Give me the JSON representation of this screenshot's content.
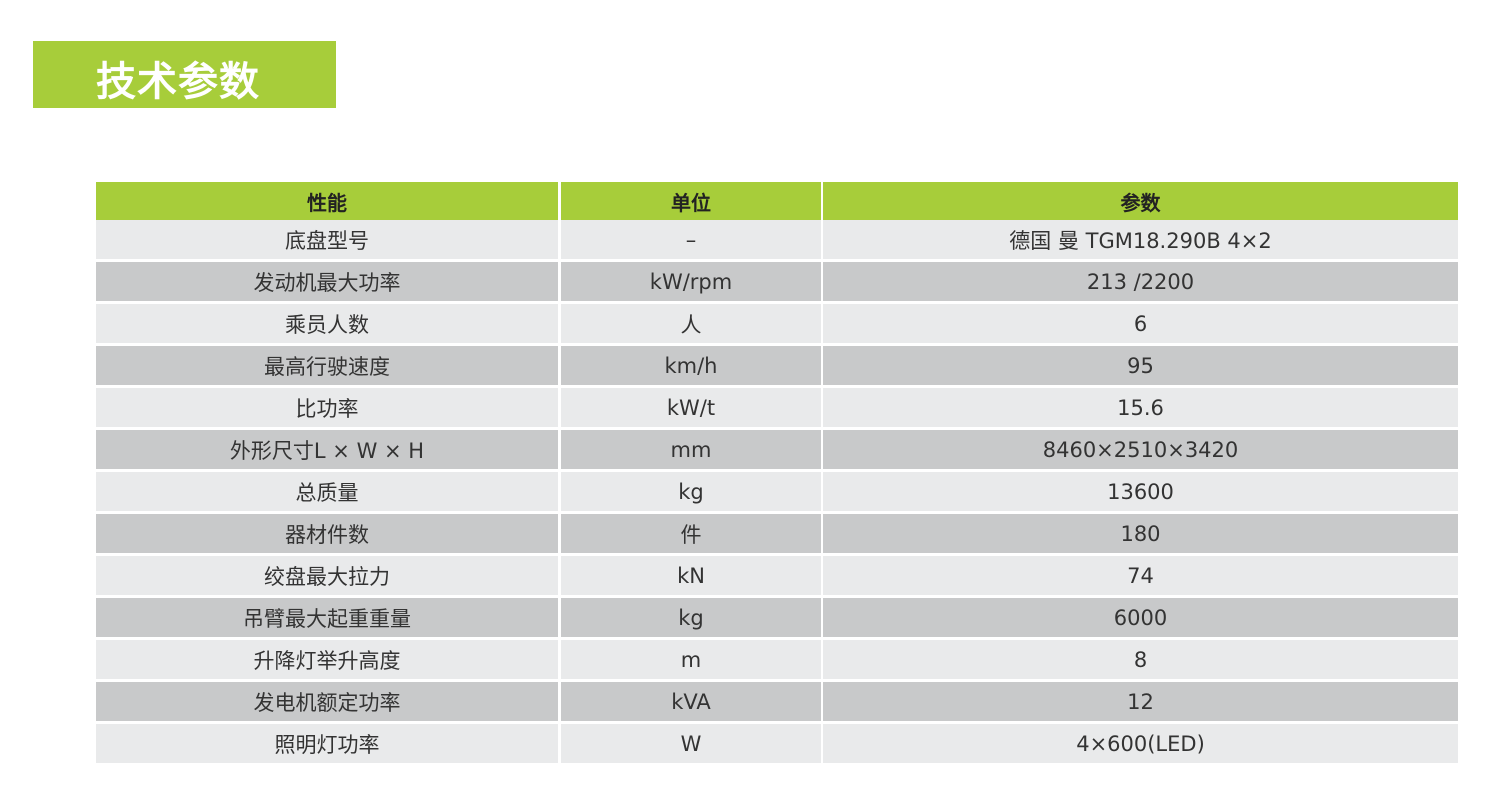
{
  "title": "技术参数",
  "colors": {
    "accent": "#a7cd3a",
    "row_light": "#e9eaeb",
    "row_dark": "#c8c9ca"
  },
  "table": {
    "headers": [
      "性能",
      "单位",
      "参数"
    ],
    "rows": [
      [
        "底盘型号",
        "–",
        "德国 曼 TGM18.290B 4×2"
      ],
      [
        "发动机最大功率",
        "kW/rpm",
        "213 /2200"
      ],
      [
        "乘员人数",
        "人",
        "6"
      ],
      [
        "最高行驶速度",
        "km/h",
        "95"
      ],
      [
        "比功率",
        "kW/t",
        "15.6"
      ],
      [
        "外形尺寸L × W × H",
        "mm",
        "8460×2510×3420"
      ],
      [
        "总质量",
        "kg",
        "13600"
      ],
      [
        "器材件数",
        "件",
        "180"
      ],
      [
        "绞盘最大拉力",
        "kN",
        "74"
      ],
      [
        "吊臂最大起重重量",
        "kg",
        "6000"
      ],
      [
        "升降灯举升高度",
        "m",
        "8"
      ],
      [
        "发电机额定功率",
        "kVA",
        "12"
      ],
      [
        "照明灯功率",
        "W",
        "4×600(LED)"
      ]
    ]
  }
}
